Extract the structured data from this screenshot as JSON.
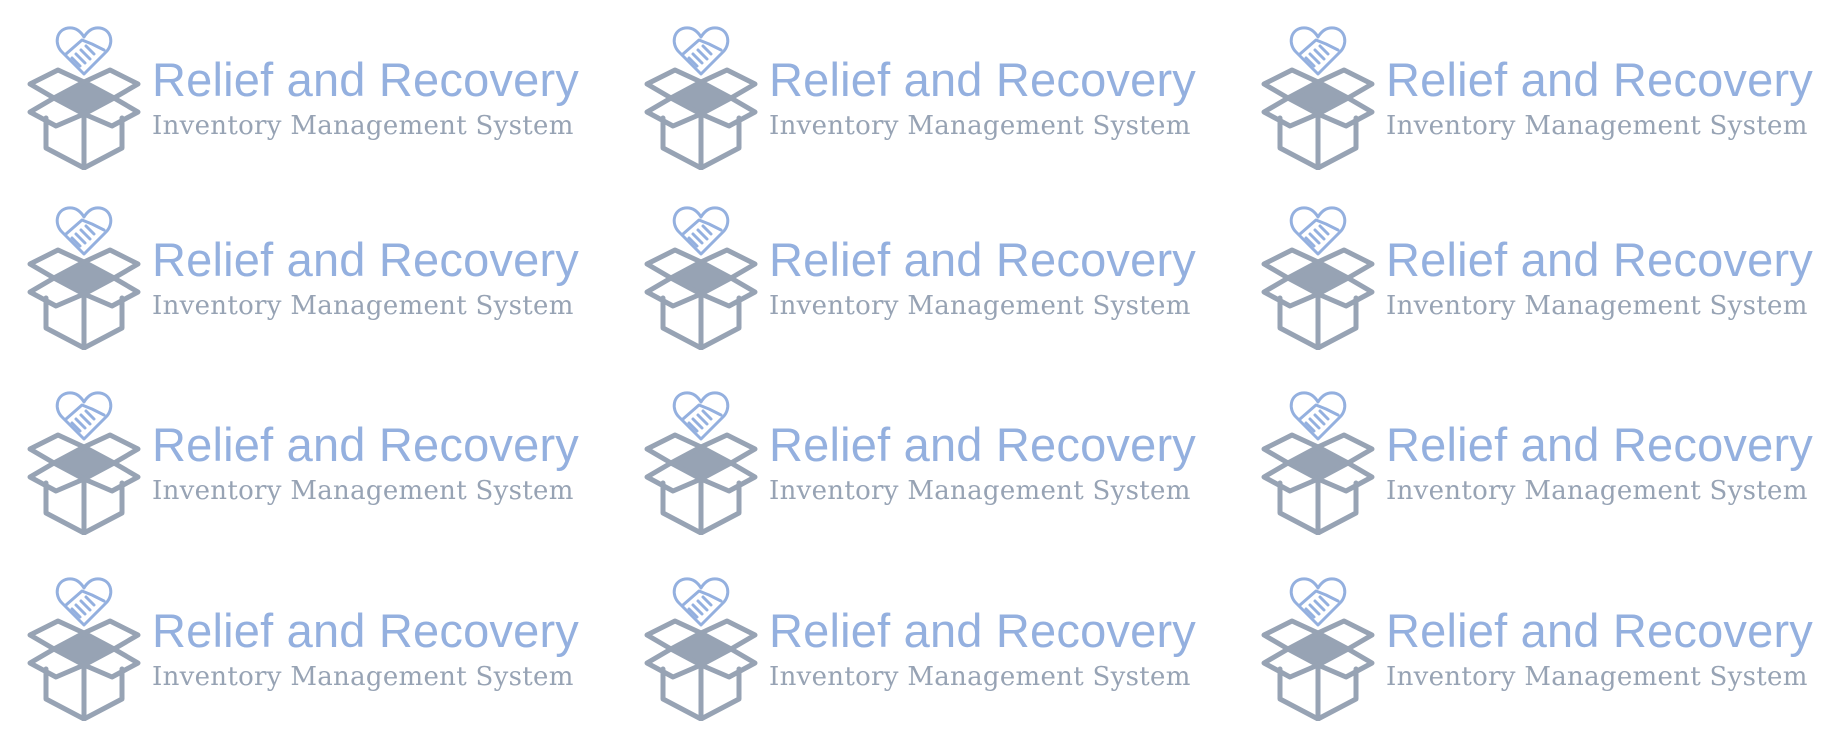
{
  "logo": {
    "title": "Relief and Recovery",
    "subtitle": "Inventory Management System",
    "icon": "box-with-heart-handshake-icon",
    "colors": {
      "accent": "#94b0df",
      "gray": "#97a3b4",
      "background": "#ffffff"
    }
  },
  "grid": {
    "rows": 4,
    "columns": 3
  }
}
